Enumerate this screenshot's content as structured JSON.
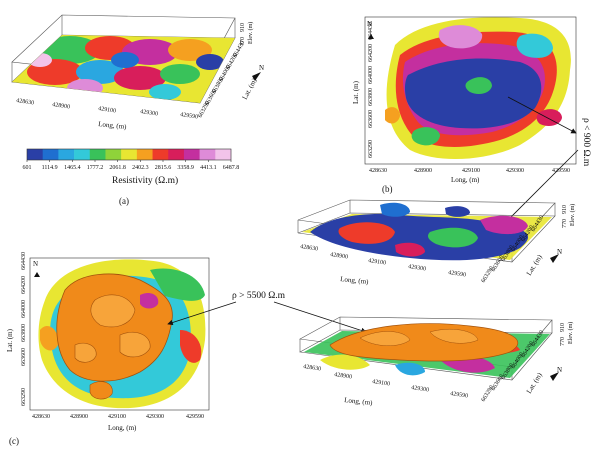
{
  "panels": {
    "a": {
      "caption": "(a)",
      "long_axis_label": "Long, (m)",
      "lat_axis_label": "Lat. (m)",
      "elev_axis_label": "Elev. (m)",
      "long_ticks": [
        "428630",
        "428900",
        "429100",
        "429300",
        "429590"
      ],
      "lat_ticks": [
        "663290",
        "663600",
        "663800",
        "664000",
        "664200",
        "664430"
      ],
      "elev_ticks": [
        "770",
        "910"
      ],
      "north_label": "N"
    },
    "colorbar": {
      "title": "Resistivity (Ω.m)",
      "ticks": [
        "601",
        "1114.9",
        "1465.4",
        "1777.2",
        "2061.8",
        "2402.3",
        "2815.6",
        "3358.9",
        "4413.1",
        "6487.8"
      ],
      "colors": [
        "#2a3fa6",
        "#1f6fd0",
        "#2aa7e0",
        "#33c9d9",
        "#39c25a",
        "#8fd33a",
        "#e8e632",
        "#f5a020",
        "#ee3b2a",
        "#d81e5b",
        "#c42f9f",
        "#de8bd8",
        "#f2c3ea"
      ]
    },
    "b": {
      "caption": "(b)",
      "annotation": "ρ < 900 Ω.m",
      "map": {
        "north_label": "N",
        "lat_axis_label": "Lat. (m)",
        "long_axis_label": "Long, (m)",
        "lat_ticks": [
          "664430",
          "664200",
          "664000",
          "663800",
          "663600",
          "663290"
        ],
        "long_ticks": [
          "428630",
          "428900",
          "429100",
          "429300",
          "429590"
        ]
      },
      "iso": {
        "long_axis_label": "Long, (m)",
        "lat_axis_label": "Lat. (m)",
        "elev_axis_label": "Elev. (m)",
        "long_ticks": [
          "428630",
          "428900",
          "429100",
          "429300",
          "429590"
        ],
        "lat_ticks": [
          "663290",
          "663600",
          "663800",
          "664000",
          "664200",
          "664430"
        ],
        "elev_ticks": [
          "770",
          "910"
        ],
        "north_label": "N"
      }
    },
    "c": {
      "caption": "(c)",
      "annotation": "ρ > 5500 Ω.m",
      "map": {
        "north_label": "N",
        "lat_axis_label": "Lat. (m)",
        "long_axis_label": "Long, (m)",
        "lat_ticks": [
          "664430",
          "664200",
          "664000",
          "663800",
          "663600",
          "663290"
        ],
        "long_ticks": [
          "428630",
          "428900",
          "429100",
          "429300",
          "429590"
        ]
      },
      "iso": {
        "long_axis_label": "Long, (m)",
        "lat_axis_label": "Lat. (m)",
        "elev_axis_label": "Elev. (m)",
        "long_ticks": [
          "428630",
          "428900",
          "429100",
          "429300",
          "429590"
        ],
        "lat_ticks": [
          "663290",
          "663600",
          "663800",
          "664000",
          "664200",
          "664430"
        ],
        "elev_ticks": [
          "770",
          "910"
        ],
        "north_label": "N"
      }
    }
  }
}
